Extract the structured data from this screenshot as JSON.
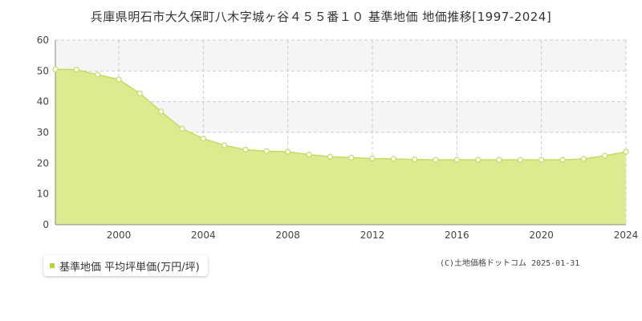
{
  "chart_data": {
    "type": "area",
    "title": "兵庫県明石市大久保町八木字城ヶ谷４５５番１０ 基準地価 地価推移[1997-2024]",
    "xlabel": "",
    "ylabel": "",
    "xlim": [
      1997,
      2024
    ],
    "ylim": [
      0,
      60
    ],
    "y_ticks": [
      0,
      10,
      20,
      30,
      40,
      50,
      60
    ],
    "x_ticks": [
      2000,
      2004,
      2008,
      2012,
      2016,
      2020,
      2024
    ],
    "grid": true,
    "legend_position": "bottom-left",
    "series": [
      {
        "name": "基準地価 平均坪単価(万円/坪)",
        "x": [
          1997,
          1998,
          1999,
          2000,
          2001,
          2002,
          2003,
          2004,
          2005,
          2006,
          2007,
          2008,
          2009,
          2010,
          2011,
          2012,
          2013,
          2014,
          2015,
          2016,
          2017,
          2018,
          2019,
          2020,
          2021,
          2022,
          2023,
          2024
        ],
        "values": [
          50.5,
          50.4,
          48.8,
          47.2,
          42.7,
          36.8,
          31.2,
          28.0,
          25.8,
          24.4,
          23.9,
          23.7,
          22.8,
          22.1,
          21.8,
          21.5,
          21.4,
          21.2,
          21.1,
          21.1,
          21.1,
          21.1,
          21.1,
          21.1,
          21.1,
          21.4,
          22.4,
          23.7
        ]
      }
    ]
  },
  "legend": {
    "label": "基準地価 平均坪単価(万円/坪)"
  },
  "copyright": "(C)土地価格ドットコム 2025-01-31",
  "colors": {
    "area_fill": "#dceb8f",
    "line": "#c2dc62",
    "marker_fill": "#ffffff",
    "legend_marker": "#b6d439",
    "band": "#f5f5f5",
    "grid": "#cccccc",
    "axis": "#888888"
  }
}
